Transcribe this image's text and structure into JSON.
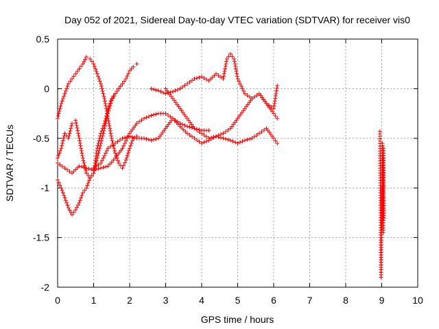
{
  "chart_data": {
    "type": "scatter",
    "title": "Day 052 of 2021, Sidereal Day-to-day VTEC variation (SDTVAR) for receiver vis0",
    "xlabel": "GPS time / hours",
    "ylabel": "SDTVAR / TECUs",
    "xlim": [
      0,
      10
    ],
    "ylim": [
      -2,
      0.5
    ],
    "xticks": [
      "0",
      "1",
      "2",
      "3",
      "4",
      "5",
      "6",
      "7",
      "8",
      "9",
      "10"
    ],
    "yticks": [
      "0.5",
      "0",
      "-0.5",
      "-1",
      "-1.5",
      "-2"
    ],
    "grid": true,
    "marker": "plus",
    "color": "#ff0000",
    "series": [
      {
        "x": [
          0.0,
          0.1,
          0.2,
          0.3,
          0.4,
          0.5,
          0.6,
          0.7,
          0.8,
          0.9,
          1.0,
          1.1,
          1.2,
          1.3,
          1.4,
          1.5,
          1.6,
          1.7,
          1.8,
          1.9,
          2.0,
          2.1,
          2.2
        ],
        "y": [
          -0.3,
          -0.15,
          -0.05,
          0.05,
          0.1,
          0.15,
          0.2,
          0.25,
          0.32,
          0.3,
          0.25,
          0.15,
          0.05,
          -0.1,
          -0.3,
          -0.5,
          -0.65,
          -0.75,
          -0.8,
          -0.72,
          -0.6,
          -0.5,
          -0.48
        ]
      },
      {
        "x": [
          0.0,
          0.1,
          0.2,
          0.3,
          0.4,
          0.5,
          0.6,
          0.7,
          0.8,
          0.9,
          1.0,
          1.1,
          1.2,
          1.3,
          1.4,
          1.5,
          1.6,
          1.7,
          1.8,
          1.9,
          2.0,
          2.1,
          2.2
        ],
        "y": [
          -0.92,
          -1.0,
          -1.1,
          -1.2,
          -1.27,
          -1.22,
          -1.15,
          -1.05,
          -1.0,
          -0.9,
          -0.85,
          -0.7,
          -0.55,
          -0.4,
          -0.25,
          -0.12,
          -0.05,
          0.0,
          0.05,
          0.1,
          0.18,
          0.22,
          0.25
        ]
      },
      {
        "x": [
          0.0,
          0.1,
          0.2,
          0.3,
          0.4,
          0.5,
          0.6,
          0.7,
          0.8,
          0.9,
          1.0,
          1.1,
          1.2,
          1.3,
          1.4,
          1.5,
          1.6,
          1.7,
          1.8
        ],
        "y": [
          -0.7,
          -0.6,
          -0.45,
          -0.5,
          -0.35,
          -0.32,
          -0.5,
          -0.7,
          -0.85,
          -0.9,
          -0.85,
          -0.6,
          -0.45,
          -0.35,
          -0.2,
          -0.1,
          -0.05,
          0.0,
          0.05
        ]
      },
      {
        "x": [
          0.0,
          0.2,
          0.4,
          0.6,
          0.8,
          1.0,
          1.2,
          1.4,
          1.6,
          1.8,
          2.0,
          2.2,
          2.4,
          2.6,
          2.8,
          3.0,
          3.2,
          3.4,
          3.6,
          3.8,
          4.0,
          4.2
        ],
        "y": [
          -0.75,
          -0.8,
          -0.85,
          -0.78,
          -0.8,
          -0.82,
          -0.8,
          -0.78,
          -0.7,
          -0.6,
          -0.45,
          -0.35,
          -0.3,
          -0.27,
          -0.25,
          -0.25,
          -0.3,
          -0.35,
          -0.38,
          -0.4,
          -0.42,
          -0.42
        ]
      },
      {
        "x": [
          1.0,
          1.2,
          1.4,
          1.6,
          1.8,
          2.0,
          2.2,
          2.4,
          2.6,
          2.8,
          3.0,
          3.2,
          3.4,
          3.6,
          3.8,
          4.0,
          4.2,
          4.4,
          4.6,
          4.8,
          5.0,
          5.2,
          5.4,
          5.6,
          5.8,
          6.0,
          6.1
        ],
        "y": [
          -0.8,
          -0.75,
          -0.6,
          -0.55,
          -0.5,
          -0.48,
          -0.5,
          -0.5,
          -0.52,
          -0.5,
          -0.4,
          -0.3,
          -0.38,
          -0.45,
          -0.5,
          -0.55,
          -0.52,
          -0.48,
          -0.5,
          -0.52,
          -0.55,
          -0.52,
          -0.5,
          -0.45,
          -0.4,
          -0.5,
          -0.55
        ]
      },
      {
        "x": [
          2.6,
          2.8,
          3.0,
          3.2,
          3.4,
          3.6,
          3.8,
          4.0,
          4.2,
          4.4,
          4.6,
          4.7,
          4.8,
          4.9,
          5.0,
          5.2,
          5.4,
          5.6,
          5.8,
          6.0,
          6.1
        ],
        "y": [
          0.0,
          -0.02,
          -0.05,
          -0.03,
          0.0,
          0.05,
          0.1,
          0.12,
          0.08,
          0.15,
          0.1,
          0.3,
          0.35,
          0.3,
          0.1,
          -0.05,
          -0.1,
          -0.05,
          -0.15,
          -0.2,
          0.03
        ]
      },
      {
        "x": [
          3.0,
          3.2,
          3.4,
          3.6,
          3.8,
          4.0,
          4.2,
          4.4,
          4.6,
          4.8,
          5.0,
          5.2,
          5.4,
          5.6,
          5.8,
          6.0,
          6.1
        ],
        "y": [
          0.0,
          -0.1,
          -0.2,
          -0.3,
          -0.4,
          -0.45,
          -0.5,
          -0.48,
          -0.45,
          -0.4,
          -0.3,
          -0.2,
          -0.1,
          -0.05,
          -0.15,
          -0.25,
          -0.3
        ]
      },
      {
        "x": [
          8.95,
          8.96,
          8.97,
          8.98,
          8.99,
          9.0,
          9.01,
          9.02,
          9.03,
          9.04,
          9.05,
          9.06
        ],
        "y": [
          -0.43,
          -0.9,
          -1.35,
          -1.9,
          -1.6,
          -1.0,
          -1.4,
          -0.55,
          -1.2,
          -1.45,
          -0.6,
          -1.3
        ]
      }
    ]
  }
}
